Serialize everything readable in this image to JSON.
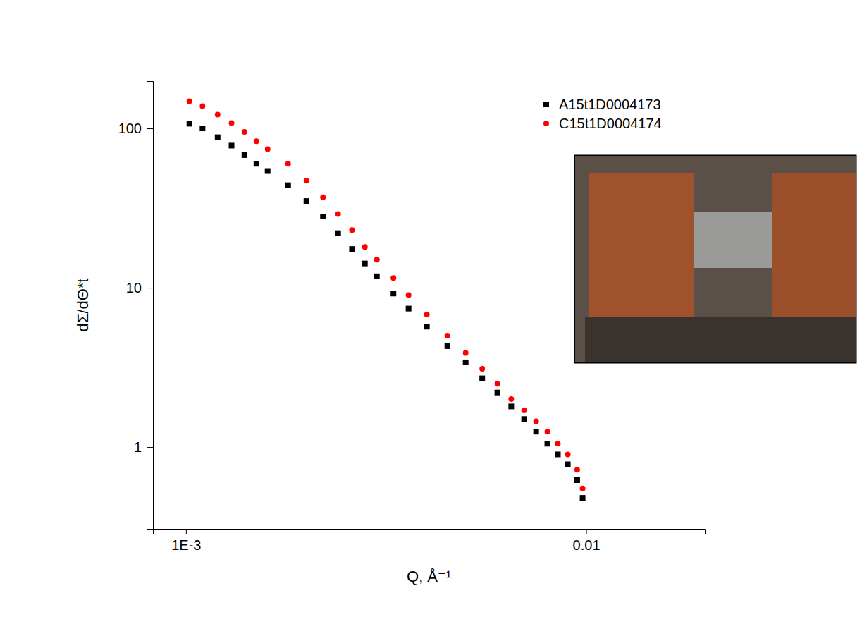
{
  "chart_data": {
    "type": "scatter",
    "x_label": "Q, Å⁻¹",
    "y_label": "dΣ/dΘ*t",
    "log": true,
    "grid": false,
    "legend": "top-right",
    "xlim": [
      0.000827,
      0.0198
    ],
    "ylim": [
      0.307,
      198
    ],
    "xticks": [
      {
        "value": 0.001,
        "label": "1E-3"
      },
      0.01
    ],
    "yticks": [
      1,
      10,
      100
    ],
    "x": [
      0.00102,
      0.0011,
      0.0012,
      0.0013,
      0.0014,
      0.0015,
      0.0016,
      0.0018,
      0.002,
      0.0022,
      0.0024,
      0.0026,
      0.0028,
      0.003,
      0.0033,
      0.0036,
      0.004,
      0.0045,
      0.005,
      0.0055,
      0.006,
      0.0065,
      0.007,
      0.0075,
      0.008,
      0.0085,
      0.009,
      0.0095,
      0.0098
    ],
    "series": [
      {
        "name": "A15t1D0004173",
        "color": "#000000",
        "marker": "square",
        "values": [
          107,
          100,
          88,
          78,
          68,
          60,
          54,
          44,
          35,
          28,
          22,
          17.5,
          14.2,
          11.8,
          9.2,
          7.4,
          5.7,
          4.3,
          3.4,
          2.7,
          2.2,
          1.8,
          1.5,
          1.25,
          1.05,
          0.9,
          0.78,
          0.62,
          0.48
        ]
      },
      {
        "name": "C15t1D0004174",
        "color": "#ff0000",
        "marker": "circle",
        "values": [
          148,
          138,
          122,
          108,
          95,
          83,
          74,
          60,
          47,
          37,
          29,
          23,
          18,
          15,
          11.5,
          9.0,
          6.8,
          5.0,
          3.9,
          3.1,
          2.5,
          2.0,
          1.7,
          1.45,
          1.25,
          1.05,
          0.9,
          0.72,
          0.55
        ]
      }
    ]
  }
}
